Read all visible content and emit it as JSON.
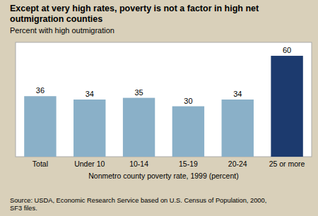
{
  "chart_data": {
    "type": "bar",
    "title": "Except at very high rates, poverty is not a factor in high net outmigration counties",
    "subtitle": "Percent with high outmigration",
    "x_label": "Nonmetro county poverty rate, 1999 (percent)",
    "source": "Source: USDA, Economic Research Service based on U.S. Census of Population, 2000,\nSF3 files.",
    "categories": [
      "Total",
      "Under 10",
      "10-14",
      "15-19",
      "20-24",
      "25 or more"
    ],
    "values": [
      36,
      34,
      35,
      30,
      34,
      60
    ],
    "colors": [
      "#8ab0c8",
      "#8ab0c8",
      "#8ab0c8",
      "#8ab0c8",
      "#8ab0c8",
      "#1c3a6e"
    ],
    "ylim": [
      0,
      68
    ],
    "data_labels": true,
    "tick_labels": "x",
    "grid": false
  }
}
